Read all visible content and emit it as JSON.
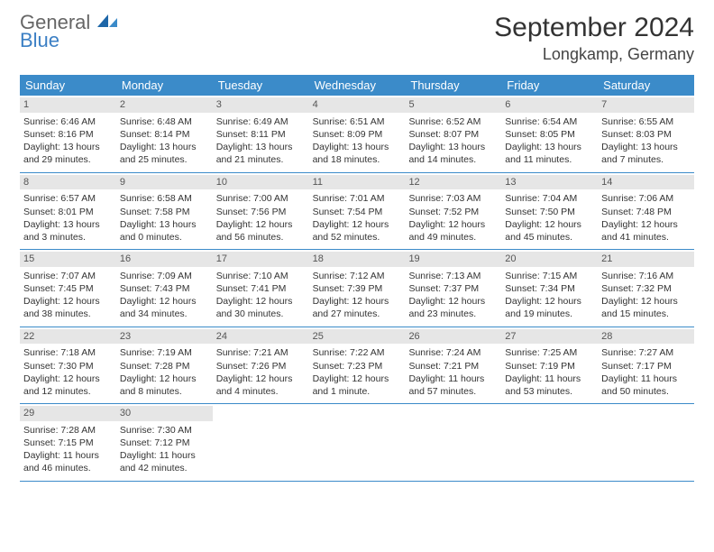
{
  "logo": {
    "general": "General",
    "blue": "Blue"
  },
  "title": "September 2024",
  "location": "Longkamp, Germany",
  "colors": {
    "header_bg": "#3b8bc9",
    "header_text": "#ffffff",
    "daynum_bg": "#e6e6e6",
    "text": "#333333",
    "logo_blue": "#3b7fc4"
  },
  "dow": [
    "Sunday",
    "Monday",
    "Tuesday",
    "Wednesday",
    "Thursday",
    "Friday",
    "Saturday"
  ],
  "days": [
    {
      "n": "1",
      "sr": "6:46 AM",
      "ss": "8:16 PM",
      "dl": "13 hours and 29 minutes."
    },
    {
      "n": "2",
      "sr": "6:48 AM",
      "ss": "8:14 PM",
      "dl": "13 hours and 25 minutes."
    },
    {
      "n": "3",
      "sr": "6:49 AM",
      "ss": "8:11 PM",
      "dl": "13 hours and 21 minutes."
    },
    {
      "n": "4",
      "sr": "6:51 AM",
      "ss": "8:09 PM",
      "dl": "13 hours and 18 minutes."
    },
    {
      "n": "5",
      "sr": "6:52 AM",
      "ss": "8:07 PM",
      "dl": "13 hours and 14 minutes."
    },
    {
      "n": "6",
      "sr": "6:54 AM",
      "ss": "8:05 PM",
      "dl": "13 hours and 11 minutes."
    },
    {
      "n": "7",
      "sr": "6:55 AM",
      "ss": "8:03 PM",
      "dl": "13 hours and 7 minutes."
    },
    {
      "n": "8",
      "sr": "6:57 AM",
      "ss": "8:01 PM",
      "dl": "13 hours and 3 minutes."
    },
    {
      "n": "9",
      "sr": "6:58 AM",
      "ss": "7:58 PM",
      "dl": "13 hours and 0 minutes."
    },
    {
      "n": "10",
      "sr": "7:00 AM",
      "ss": "7:56 PM",
      "dl": "12 hours and 56 minutes."
    },
    {
      "n": "11",
      "sr": "7:01 AM",
      "ss": "7:54 PM",
      "dl": "12 hours and 52 minutes."
    },
    {
      "n": "12",
      "sr": "7:03 AM",
      "ss": "7:52 PM",
      "dl": "12 hours and 49 minutes."
    },
    {
      "n": "13",
      "sr": "7:04 AM",
      "ss": "7:50 PM",
      "dl": "12 hours and 45 minutes."
    },
    {
      "n": "14",
      "sr": "7:06 AM",
      "ss": "7:48 PM",
      "dl": "12 hours and 41 minutes."
    },
    {
      "n": "15",
      "sr": "7:07 AM",
      "ss": "7:45 PM",
      "dl": "12 hours and 38 minutes."
    },
    {
      "n": "16",
      "sr": "7:09 AM",
      "ss": "7:43 PM",
      "dl": "12 hours and 34 minutes."
    },
    {
      "n": "17",
      "sr": "7:10 AM",
      "ss": "7:41 PM",
      "dl": "12 hours and 30 minutes."
    },
    {
      "n": "18",
      "sr": "7:12 AM",
      "ss": "7:39 PM",
      "dl": "12 hours and 27 minutes."
    },
    {
      "n": "19",
      "sr": "7:13 AM",
      "ss": "7:37 PM",
      "dl": "12 hours and 23 minutes."
    },
    {
      "n": "20",
      "sr": "7:15 AM",
      "ss": "7:34 PM",
      "dl": "12 hours and 19 minutes."
    },
    {
      "n": "21",
      "sr": "7:16 AM",
      "ss": "7:32 PM",
      "dl": "12 hours and 15 minutes."
    },
    {
      "n": "22",
      "sr": "7:18 AM",
      "ss": "7:30 PM",
      "dl": "12 hours and 12 minutes."
    },
    {
      "n": "23",
      "sr": "7:19 AM",
      "ss": "7:28 PM",
      "dl": "12 hours and 8 minutes."
    },
    {
      "n": "24",
      "sr": "7:21 AM",
      "ss": "7:26 PM",
      "dl": "12 hours and 4 minutes."
    },
    {
      "n": "25",
      "sr": "7:22 AM",
      "ss": "7:23 PM",
      "dl": "12 hours and 1 minute."
    },
    {
      "n": "26",
      "sr": "7:24 AM",
      "ss": "7:21 PM",
      "dl": "11 hours and 57 minutes."
    },
    {
      "n": "27",
      "sr": "7:25 AM",
      "ss": "7:19 PM",
      "dl": "11 hours and 53 minutes."
    },
    {
      "n": "28",
      "sr": "7:27 AM",
      "ss": "7:17 PM",
      "dl": "11 hours and 50 minutes."
    },
    {
      "n": "29",
      "sr": "7:28 AM",
      "ss": "7:15 PM",
      "dl": "11 hours and 46 minutes."
    },
    {
      "n": "30",
      "sr": "7:30 AM",
      "ss": "7:12 PM",
      "dl": "11 hours and 42 minutes."
    }
  ],
  "labels": {
    "sunrise": "Sunrise:",
    "sunset": "Sunset:",
    "daylight": "Daylight:"
  },
  "layout": {
    "start_offset": 0,
    "cols": 7
  }
}
